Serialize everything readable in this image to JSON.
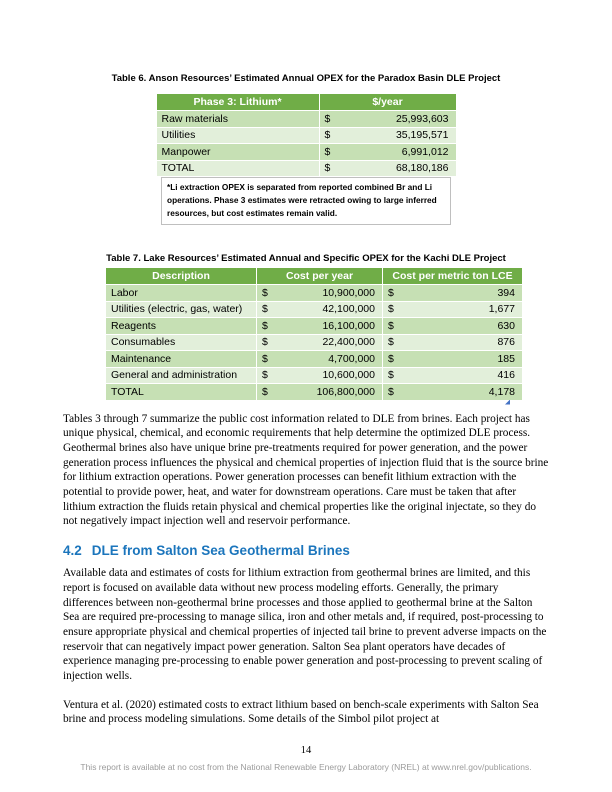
{
  "table6": {
    "caption": "Table 6. Anson Resources’ Estimated Annual OPEX for the Paradox Basin DLE Project",
    "headers": [
      "Phase 3: Lithium*",
      "$/year"
    ],
    "rows": [
      {
        "label": "Raw materials",
        "currency": "$",
        "value": "25,993,603"
      },
      {
        "label": "Utilities",
        "currency": "$",
        "value": "35,195,571"
      },
      {
        "label": "Manpower",
        "currency": "$",
        "value": "6,991,012"
      },
      {
        "label": "TOTAL",
        "currency": "$",
        "value": "68,180,186"
      }
    ],
    "footnote": "*Li extraction OPEX is separated from reported combined Br and Li operations. Phase 3 estimates were retracted owing to large inferred resources, but cost estimates remain valid."
  },
  "table7": {
    "caption": "Table 7. Lake Resources’ Estimated Annual and Specific OPEX for the Kachi DLE Project",
    "headers": [
      "Description",
      "Cost per year",
      "Cost per metric ton LCE"
    ],
    "rows": [
      {
        "label": "Labor",
        "c1": "$",
        "v1": "10,900,000",
        "c2": "$",
        "v2": "394"
      },
      {
        "label": "Utilities (electric, gas, water)",
        "c1": "$",
        "v1": "42,100,000",
        "c2": "$",
        "v2": "1,677"
      },
      {
        "label": "Reagents",
        "c1": "$",
        "v1": "16,100,000",
        "c2": "$",
        "v2": "630"
      },
      {
        "label": "Consumables",
        "c1": "$",
        "v1": "22,400,000",
        "c2": "$",
        "v2": "876"
      },
      {
        "label": "Maintenance",
        "c1": "$",
        "v1": "4,700,000",
        "c2": "$",
        "v2": "185"
      },
      {
        "label": "General and administration",
        "c1": "$",
        "v1": "10,600,000",
        "c2": "$",
        "v2": "416"
      },
      {
        "label": "TOTAL",
        "c1": "$",
        "v1": "106,800,000",
        "c2": "$",
        "v2": "4,178"
      }
    ]
  },
  "body": {
    "p1": "Tables 3 through 7 summarize the public cost information related to DLE from brines. Each project has unique physical, chemical, and economic requirements that help determine the optimized DLE process. Geothermal brines also have unique brine pre-treatments required for power generation, and the power generation process influences the physical and chemical properties of injection fluid that is the source brine for lithium extraction operations. Power generation processes can benefit lithium extraction with the potential to provide power, heat, and water for downstream operations. Care must be taken that after lithium extraction the fluids retain physical and chemical properties like the original injectate, so they do not negatively impact injection well and reservoir performance.",
    "heading_number": "4.2",
    "heading_text": "DLE from Salton Sea Geothermal Brines",
    "p2": "Available data and estimates of costs for lithium extraction from geothermal brines are limited, and this report is focused on available data without new process modeling efforts. Generally, the primary differences between non-geothermal brine processes and those applied to geothermal brine at the Salton Sea are required pre-processing to manage silica, iron and other metals and, if required, post-processing to ensure appropriate physical and chemical properties of injected tail brine to prevent adverse impacts on the reservoir that can negatively impact power generation. Salton Sea plant operators have decades of experience managing pre-processing to enable power generation and post-processing to prevent scaling of injection wells.",
    "p3": "Ventura et al. (2020) estimated costs to extract lithium based on bench-scale experiments with Salton Sea brine and process modeling simulations. Some details of the Simbol pilot project at"
  },
  "footer": {
    "page_number": "14",
    "availability_note": "This report is available at no cost from the National Renewable Energy Laboratory (NREL) at www.nrel.gov/publications."
  },
  "colors": {
    "table_header_green": "#70AD47",
    "band_dark": "#C6E0B4",
    "band_light": "#E2EFDA",
    "heading_blue": "#1B75BC",
    "footer_gray": "#9B9B9B",
    "artifact_blue": "#4472C4"
  }
}
